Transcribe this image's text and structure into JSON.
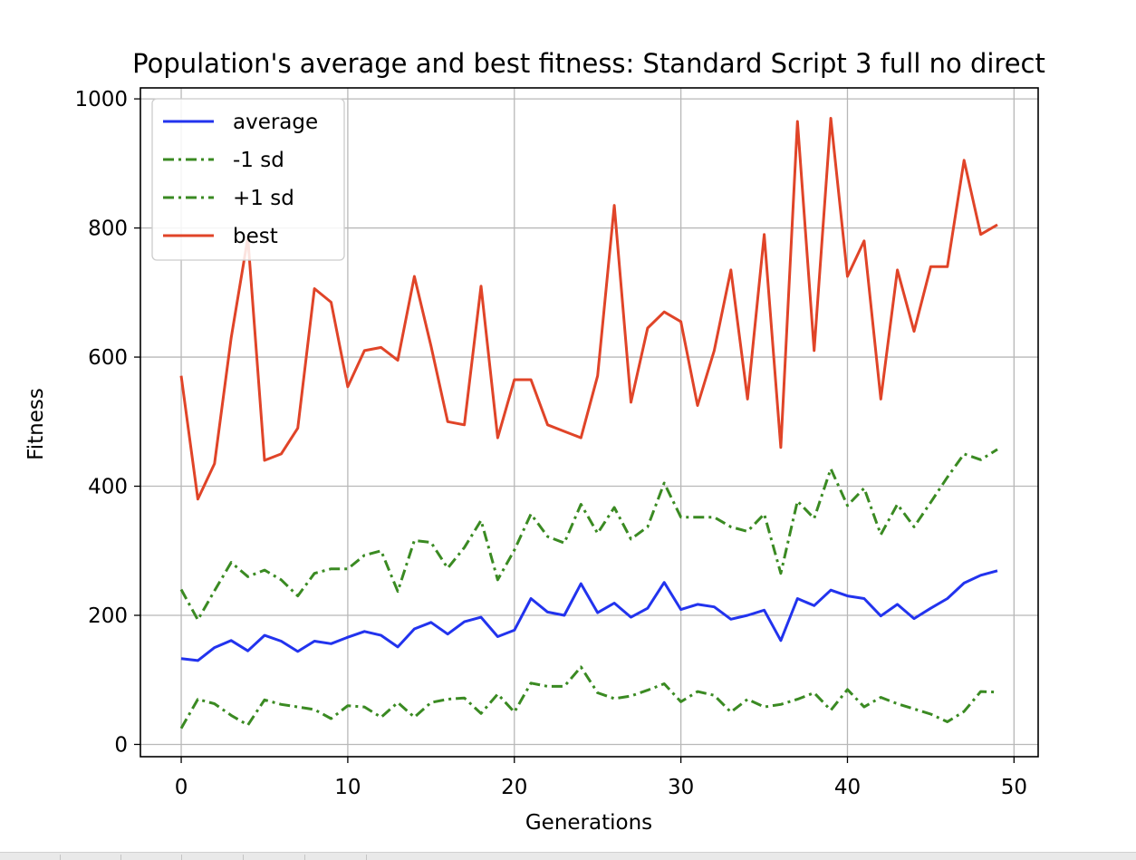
{
  "chart_data": {
    "type": "line",
    "title": "Population's average and best fitness: Standard Script 3 full no direct",
    "xlabel": "Generations",
    "ylabel": "Fitness",
    "xlim": [
      -2.45,
      51.45
    ],
    "ylim": [
      -19,
      1017
    ],
    "xticks": [
      0,
      10,
      20,
      30,
      40,
      50
    ],
    "yticks": [
      0,
      200,
      400,
      600,
      800,
      1000
    ],
    "grid": true,
    "legend_position": "top-left",
    "x": [
      0,
      1,
      2,
      3,
      4,
      5,
      6,
      7,
      8,
      9,
      10,
      11,
      12,
      13,
      14,
      15,
      16,
      17,
      18,
      19,
      20,
      21,
      22,
      23,
      24,
      25,
      26,
      27,
      28,
      29,
      30,
      31,
      32,
      33,
      34,
      35,
      36,
      37,
      38,
      39,
      40,
      41,
      42,
      43,
      44,
      45,
      46,
      47,
      48,
      49
    ],
    "series": [
      {
        "name": "average",
        "color": "#2233ee",
        "style": "solid",
        "values": [
          133,
          130,
          150,
          161,
          145,
          169,
          160,
          144,
          160,
          156,
          166,
          175,
          169,
          151,
          179,
          189,
          171,
          190,
          197,
          167,
          177,
          226,
          205,
          200,
          249,
          204,
          219,
          197,
          211,
          251,
          209,
          217,
          213,
          194,
          200,
          208,
          161,
          226,
          215,
          239,
          230,
          226,
          199,
          217,
          195,
          211,
          226,
          250,
          262,
          269
        ]
      },
      {
        "name": "-1 sd",
        "color": "#3a8a22",
        "style": "dashdot",
        "values": [
          25,
          70,
          63,
          45,
          30,
          69,
          62,
          58,
          54,
          40,
          60,
          58,
          42,
          65,
          42,
          65,
          70,
          72,
          48,
          78,
          50,
          95,
          90,
          90,
          120,
          80,
          71,
          75,
          84,
          94,
          66,
          82,
          76,
          50,
          70,
          58,
          62,
          70,
          80,
          53,
          85,
          58,
          73,
          63,
          55,
          47,
          35,
          51,
          82,
          81
        ]
      },
      {
        "name": "+1 sd",
        "color": "#3a8a22",
        "style": "dashdot",
        "values": [
          240,
          193,
          238,
          282,
          260,
          270,
          255,
          230,
          265,
          272,
          272,
          293,
          300,
          237,
          316,
          313,
          273,
          305,
          347,
          255,
          301,
          357,
          322,
          312,
          372,
          327,
          367,
          318,
          337,
          405,
          352,
          352,
          352,
          337,
          330,
          357,
          265,
          377,
          350,
          427,
          370,
          397,
          325,
          372,
          337,
          375,
          414,
          450,
          441,
          457
        ]
      },
      {
        "name": "best",
        "color": "#e04428",
        "style": "solid",
        "values": [
          571,
          380,
          435,
          630,
          785,
          440,
          450,
          490,
          706,
          685,
          554,
          610,
          615,
          595,
          725,
          617,
          500,
          495,
          710,
          475,
          565,
          565,
          495,
          485,
          475,
          571,
          835,
          530,
          645,
          670,
          655,
          525,
          610,
          735,
          535,
          790,
          460,
          965,
          610,
          970,
          725,
          780,
          535,
          735,
          640,
          740,
          740,
          905,
          790,
          805
        ]
      }
    ]
  }
}
